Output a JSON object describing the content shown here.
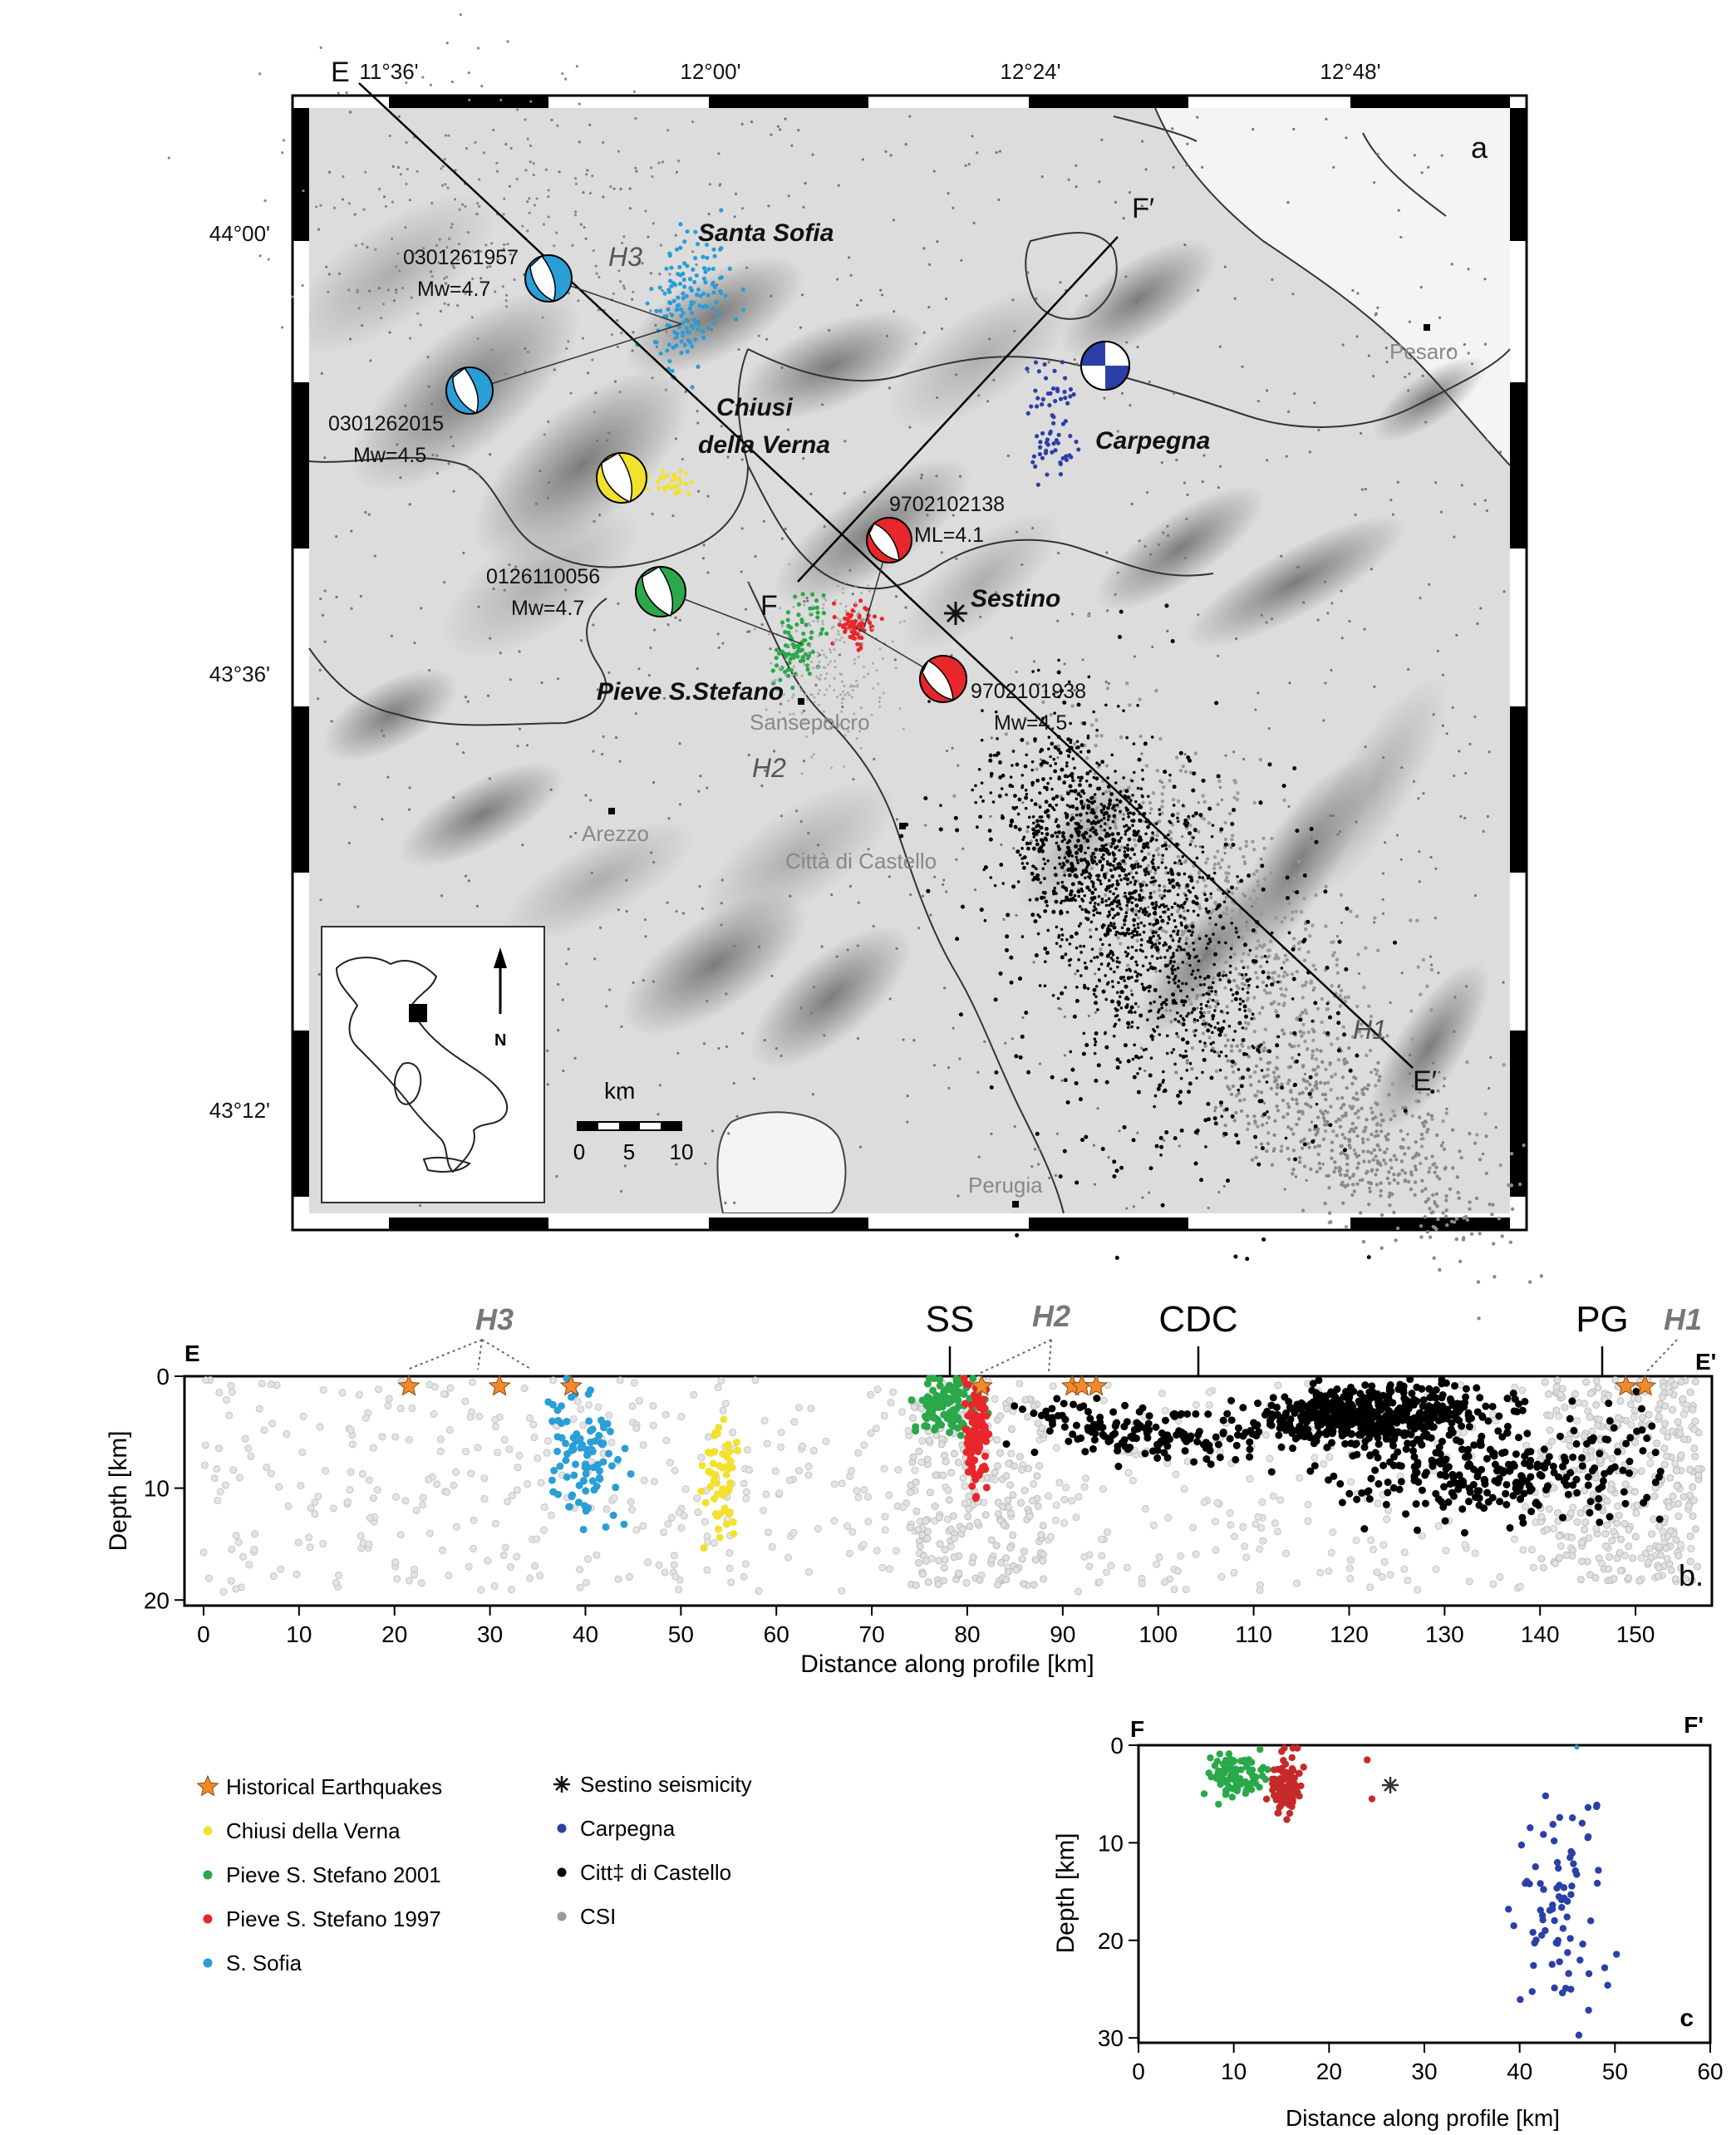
{
  "map": {
    "panel_label": "a",
    "lon_ticks": [
      "11°36'",
      "12°00'",
      "12°24'",
      "12°48'"
    ],
    "lat_ticks": [
      "44°00'",
      "43°36'",
      "43°12'"
    ],
    "profile_E": {
      "start": "E",
      "end": "E′"
    },
    "profile_F": {
      "start": "F",
      "end": "F′"
    },
    "towns": [
      "Pesaro",
      "Sansepolcro",
      "Arezzo",
      "Città di Castello",
      "Perugia"
    ],
    "clusters": [
      "Santa Sofia",
      "Chiusi",
      "della Verna",
      "Carpegna",
      "Sestino",
      "Pieve S.Stefano"
    ],
    "h_labels": [
      "H3",
      "H2",
      "H1"
    ],
    "events": [
      {
        "id": "0301261957",
        "mag": "Mw=4.7",
        "color": "#2a9ed6"
      },
      {
        "id": "0301262015",
        "mag": "Mw=4.5",
        "color": "#2a9ed6"
      },
      {
        "id": "0126110056",
        "mag": "Mw=4.7",
        "color": "#2aa84a"
      },
      {
        "id": "9702102138",
        "mag": "ML=4.1",
        "color": "#e8262b"
      },
      {
        "id": "9702101938",
        "mag": "Mw=4.5",
        "color": "#e8262b"
      }
    ],
    "scale": {
      "unit": "km",
      "ticks": [
        "0",
        "5",
        "10"
      ]
    },
    "inset_north": "N"
  },
  "panel_b": {
    "label": "b.",
    "left_label": "E",
    "right_label": "E'",
    "ylabel": "Depth [km]",
    "xlabel": "Distance along profile [km]",
    "xticks": [
      "0",
      "10",
      "20",
      "30",
      "40",
      "50",
      "60",
      "70",
      "80",
      "90",
      "100",
      "110",
      "120",
      "130",
      "140",
      "150"
    ],
    "yticks": [
      "0",
      "10",
      "20"
    ],
    "markers": [
      "SS",
      "CDC",
      "PG"
    ],
    "h_labels": [
      "H3",
      "H2",
      "H1"
    ]
  },
  "panel_c": {
    "label": "c",
    "left_label": "F",
    "right_label": "F'",
    "ylabel": "Depth [km]",
    "xlabel": "Distance along profile [km]",
    "xticks": [
      "0",
      "10",
      "20",
      "30",
      "40",
      "50",
      "60"
    ],
    "yticks": [
      "0",
      "10",
      "20",
      "30"
    ]
  },
  "legend": {
    "items": [
      {
        "label": "Historical Earthquakes",
        "color": "#f08a2c",
        "marker": "star"
      },
      {
        "label": "Chiusi della Verna",
        "color": "#f2e12e",
        "marker": "dot"
      },
      {
        "label": "Pieve S. Stefano 2001",
        "color": "#2aa84a",
        "marker": "dot"
      },
      {
        "label": "Pieve S. Stefano 1997",
        "color": "#e8262b",
        "marker": "dot"
      },
      {
        "label": "S. Sofia",
        "color": "#2a9ed6",
        "marker": "dot"
      },
      {
        "label": "Sestino seismicity",
        "color": "#111111",
        "marker": "asterisk"
      },
      {
        "label": "Carpegna",
        "color": "#2b3fa8",
        "marker": "dot"
      },
      {
        "label": "Citt‡ di Castello",
        "color": "#000000",
        "marker": "dot"
      },
      {
        "label": "CSI",
        "color": "#9a9a9a",
        "marker": "dot"
      }
    ]
  }
}
